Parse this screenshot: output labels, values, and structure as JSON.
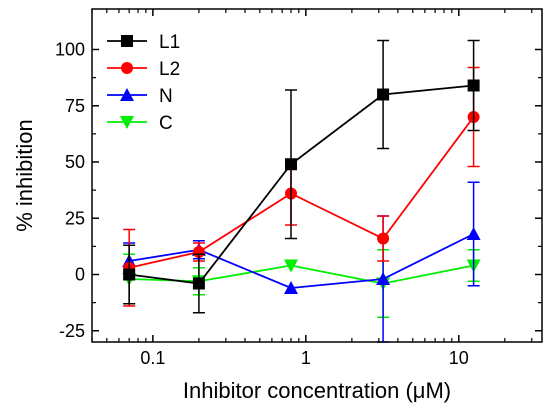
{
  "chart_data": {
    "type": "line",
    "title": "",
    "xlabel": "Inhibitor concentration (μM)",
    "ylabel": "% inhibition",
    "xscale": "log",
    "xlim": [
      0.04,
      35
    ],
    "ylim": [
      -30,
      118
    ],
    "x_ticks": [
      {
        "value": 0.1,
        "label": "0.1"
      },
      {
        "value": 1,
        "label": "1"
      },
      {
        "value": 10,
        "label": "10"
      }
    ],
    "y_ticks": [
      {
        "value": -25,
        "label": "-25"
      },
      {
        "value": 0,
        "label": "0"
      },
      {
        "value": 25,
        "label": "25"
      },
      {
        "value": 50,
        "label": "50"
      },
      {
        "value": 75,
        "label": "75"
      },
      {
        "value": 100,
        "label": "100"
      }
    ],
    "legend_position": "top-left",
    "series": [
      {
        "name": "L1",
        "color": "#000000",
        "marker": "square",
        "x": [
          0.07,
          0.2,
          0.8,
          3.2,
          12.5
        ],
        "y": [
          0,
          -4,
          49,
          80,
          84
        ],
        "err": [
          13,
          13,
          33,
          24,
          20
        ]
      },
      {
        "name": "L2",
        "color": "#ff0000",
        "marker": "circle",
        "x": [
          0.07,
          0.2,
          0.8,
          3.2,
          12.5
        ],
        "y": [
          3,
          10,
          36,
          16,
          70
        ],
        "err": [
          17,
          4,
          14,
          10,
          22
        ]
      },
      {
        "name": "N",
        "color": "#0000ff",
        "marker": "triangle-up",
        "x": [
          0.07,
          0.2,
          0.8,
          3.2,
          12.5
        ],
        "y": [
          6,
          11,
          -6,
          -2,
          18
        ],
        "err": [
          8,
          4,
          0,
          28,
          23
        ]
      },
      {
        "name": "C",
        "color": "#00ee00",
        "marker": "triangle-down",
        "x": [
          0.07,
          0.2,
          0.8,
          3.2,
          12.5
        ],
        "y": [
          -2,
          -3,
          4,
          -4,
          4
        ],
        "err": [
          11,
          6,
          0,
          15,
          7
        ]
      }
    ]
  }
}
